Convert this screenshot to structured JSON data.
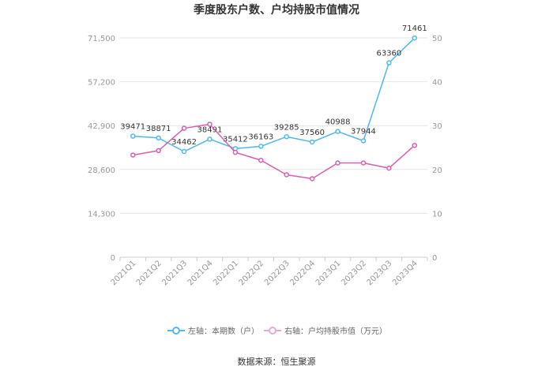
{
  "chart_data": {
    "type": "line",
    "title": "季度股东户数、户均持股市值情况",
    "categories": [
      "2021Q1",
      "2021Q2",
      "2021Q3",
      "2021Q4",
      "2022Q1",
      "2022Q2",
      "2022Q3",
      "2022Q4",
      "2023Q1",
      "2023Q2",
      "2023Q3",
      "2023Q4"
    ],
    "left_axis": {
      "ylim": [
        0,
        71500
      ],
      "ticks": [
        "0",
        "14,300",
        "28,600",
        "42,900",
        "57,200",
        "71,500"
      ]
    },
    "right_axis": {
      "ylim": [
        0,
        50
      ],
      "ticks": [
        "0",
        "10",
        "20",
        "30",
        "40",
        "50"
      ]
    },
    "series": [
      {
        "name": "左轴：本期数（户）",
        "axis": "left",
        "color": "#4fb8ef",
        "values": [
          39471,
          38871,
          34462,
          38491,
          35412,
          36163,
          39285,
          37560,
          40988,
          37944,
          63360,
          71461
        ],
        "labels": [
          "39471",
          "38871",
          "34462",
          "38491",
          "35412",
          "36163",
          "39285",
          "37560",
          "40988",
          "37944",
          "63360",
          "71461"
        ]
      },
      {
        "name": "右轴：户均持股市值（万元）",
        "axis": "right",
        "color": "#d95fae",
        "values": [
          23.3,
          24.3,
          29.4,
          30.3,
          23.9,
          22.1,
          18.8,
          17.9,
          21.5,
          21.5,
          20.3,
          25.5
        ]
      }
    ],
    "grid": true,
    "legend": "bottom"
  },
  "source": "数据来源：恒生聚源"
}
